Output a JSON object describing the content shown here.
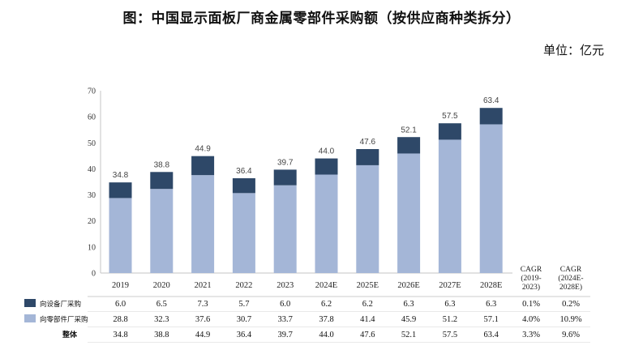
{
  "title": "图：中国显示面板厂商金属零部件采购额（按供应商种类拆分）",
  "unit": "单位：亿元",
  "colors": {
    "dark": "#2e4868",
    "light": "#a4b6d7"
  },
  "chart_data": {
    "type": "bar",
    "stacked": true,
    "categories": [
      "2019",
      "2020",
      "2021",
      "2022",
      "2023",
      "2024E",
      "2025E",
      "2026E",
      "2027E",
      "2028E"
    ],
    "series": [
      {
        "name": "向零部件厂采购",
        "color": "#a4b6d7",
        "values": [
          28.8,
          32.3,
          37.6,
          30.7,
          33.7,
          37.8,
          41.4,
          45.9,
          51.2,
          57.1
        ]
      },
      {
        "name": "向设备厂采购",
        "color": "#2e4868",
        "values": [
          6.0,
          6.5,
          7.3,
          5.7,
          6.0,
          6.2,
          6.2,
          6.3,
          6.3,
          6.3
        ]
      }
    ],
    "totals": [
      34.8,
      38.8,
      44.9,
      36.4,
      39.7,
      44.0,
      47.6,
      52.1,
      57.5,
      63.4
    ],
    "ylim": [
      0,
      70
    ],
    "yticks": [
      0,
      10,
      20,
      30,
      40,
      50,
      60,
      70
    ],
    "cagr_headers": [
      [
        "CAGR",
        "(2019-",
        "2023)"
      ],
      [
        "CAGR",
        "(2024E-",
        "2028E)"
      ]
    ],
    "table": {
      "rows": [
        {
          "label": "向设备厂采购",
          "swatch": "#2e4868",
          "values": [
            "6.0",
            "6.5",
            "7.3",
            "5.7",
            "6.0",
            "6.2",
            "6.2",
            "6.3",
            "6.3",
            "6.3"
          ],
          "cagr": [
            "0.1%",
            "0.2%"
          ]
        },
        {
          "label": "向零部件厂采购",
          "swatch": "#a4b6d7",
          "values": [
            "28.8",
            "32.3",
            "37.6",
            "30.7",
            "33.7",
            "37.8",
            "41.4",
            "45.9",
            "51.2",
            "57.1"
          ],
          "cagr": [
            "4.0%",
            "10.9%"
          ]
        },
        {
          "label": "整体",
          "swatch": null,
          "values": [
            "34.8",
            "38.8",
            "44.9",
            "36.4",
            "39.7",
            "44.0",
            "47.6",
            "52.1",
            "57.5",
            "63.4"
          ],
          "cagr": [
            "3.3%",
            "9.6%"
          ]
        }
      ]
    }
  }
}
